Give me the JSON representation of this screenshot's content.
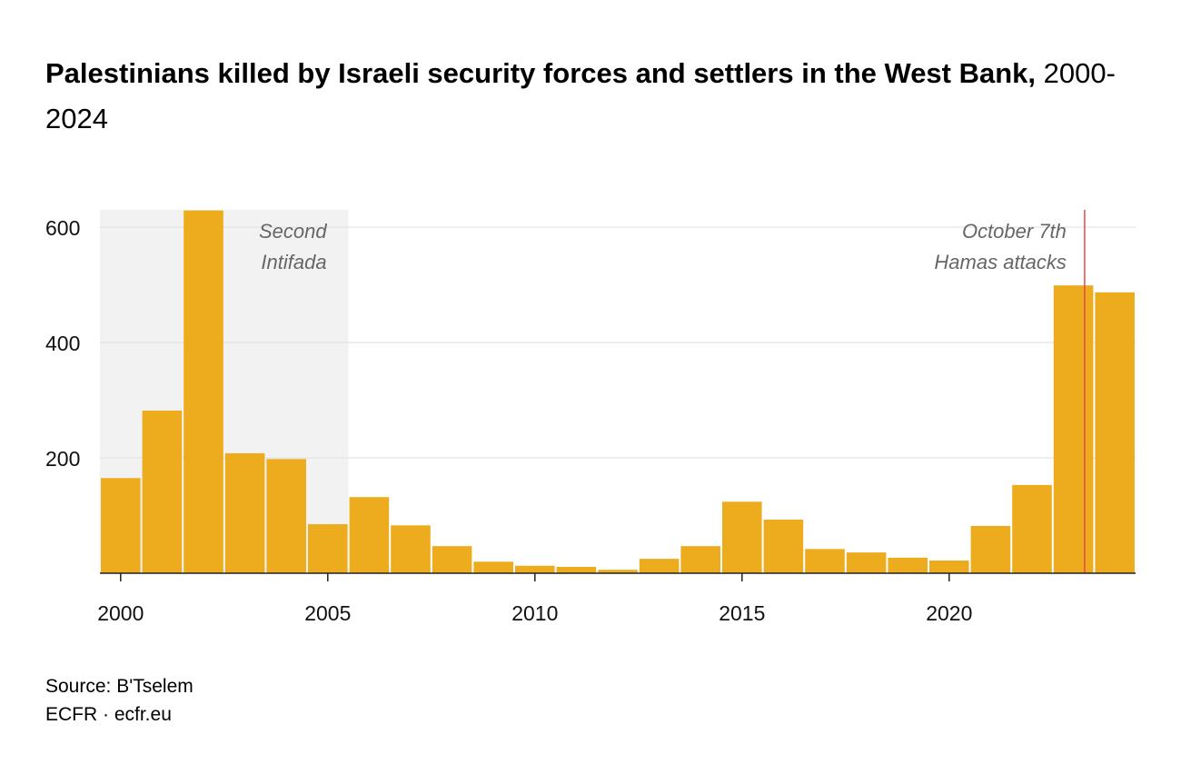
{
  "chart_data": {
    "type": "bar",
    "title": "Palestinians killed by Israeli security forces and settlers in the West Bank,",
    "subtitle": "2000-2024",
    "categories": [
      2000,
      2001,
      2002,
      2003,
      2004,
      2005,
      2006,
      2007,
      2008,
      2009,
      2010,
      2011,
      2012,
      2013,
      2014,
      2015,
      2016,
      2017,
      2018,
      2019,
      2020,
      2021,
      2022,
      2023,
      2024
    ],
    "values": [
      165,
      282,
      629,
      208,
      198,
      85,
      132,
      83,
      47,
      20,
      13,
      11,
      6,
      25,
      47,
      124,
      93,
      42,
      36,
      27,
      22,
      82,
      153,
      499,
      487
    ],
    "ylim": [
      0,
      630
    ],
    "yticks": [
      200,
      400,
      600
    ],
    "xticks": [
      2000,
      2005,
      2010,
      2015,
      2020
    ],
    "grid": true,
    "bar_color": "#ECAC1E",
    "shaded_period": {
      "label_lines": [
        "Second",
        "Intifada"
      ],
      "from": 2000.0,
      "to": 2006.0,
      "color": "#F2F2F2"
    },
    "event_line": {
      "label_lines": [
        "October 7th",
        "Hamas attacks"
      ],
      "at": 2023.77,
      "color": "#E8474C"
    }
  },
  "source": "Source: B'Tselem",
  "credit": "ECFR · ecfr.eu"
}
